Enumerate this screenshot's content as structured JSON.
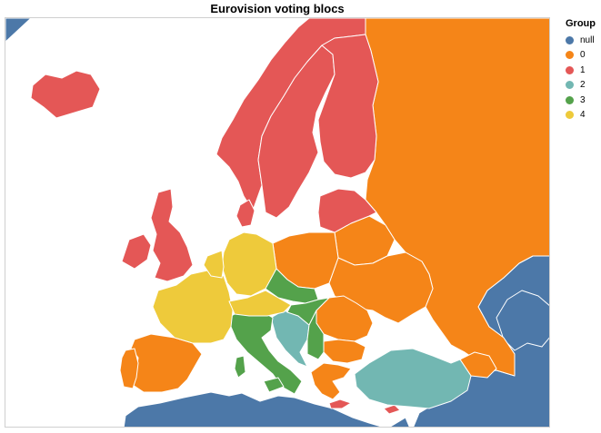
{
  "title": "Eurovision voting blocs",
  "legend": {
    "title": "Group",
    "items": [
      {
        "label": "null",
        "color": "#4c78a8"
      },
      {
        "label": "0",
        "color": "#f58518"
      },
      {
        "label": "1",
        "color": "#e45756"
      },
      {
        "label": "2",
        "color": "#72b7b2"
      },
      {
        "label": "3",
        "color": "#54a24b"
      },
      {
        "label": "4",
        "color": "#eeca3b"
      }
    ]
  },
  "map": {
    "stroke": "#ffffff",
    "regions": [
      {
        "name": "russia",
        "group": "0"
      },
      {
        "name": "belarus",
        "group": "0"
      },
      {
        "name": "ukraine",
        "group": "0"
      },
      {
        "name": "poland",
        "group": "0"
      },
      {
        "name": "romania",
        "group": "0"
      },
      {
        "name": "moldova",
        "group": "0"
      },
      {
        "name": "bulgaria",
        "group": "0"
      },
      {
        "name": "spain",
        "group": "0"
      },
      {
        "name": "portugal",
        "group": "0"
      },
      {
        "name": "greece",
        "group": "0"
      },
      {
        "name": "caucasus",
        "group": "0"
      },
      {
        "name": "norway",
        "group": "1"
      },
      {
        "name": "sweden",
        "group": "1"
      },
      {
        "name": "finland",
        "group": "1"
      },
      {
        "name": "baltics",
        "group": "1"
      },
      {
        "name": "denmark",
        "group": "1"
      },
      {
        "name": "iceland",
        "group": "1"
      },
      {
        "name": "great-britain",
        "group": "1"
      },
      {
        "name": "ireland",
        "group": "1"
      },
      {
        "name": "cyprus",
        "group": "1"
      },
      {
        "name": "crete",
        "group": "1"
      },
      {
        "name": "turkey",
        "group": "2"
      },
      {
        "name": "balkans-west",
        "group": "2"
      },
      {
        "name": "italy",
        "group": "3"
      },
      {
        "name": "sardinia",
        "group": "3"
      },
      {
        "name": "sicily",
        "group": "3"
      },
      {
        "name": "czech-slovakia",
        "group": "3"
      },
      {
        "name": "hungary",
        "group": "3"
      },
      {
        "name": "serbia",
        "group": "3"
      },
      {
        "name": "france",
        "group": "4"
      },
      {
        "name": "germany",
        "group": "4"
      },
      {
        "name": "benelux",
        "group": "4"
      },
      {
        "name": "switzerland-austria",
        "group": "4"
      },
      {
        "name": "north-africa",
        "group": "null"
      },
      {
        "name": "middle-east",
        "group": "null"
      },
      {
        "name": "kazakhstan",
        "group": "null"
      },
      {
        "name": "greenland-corner",
        "group": "null"
      }
    ]
  }
}
